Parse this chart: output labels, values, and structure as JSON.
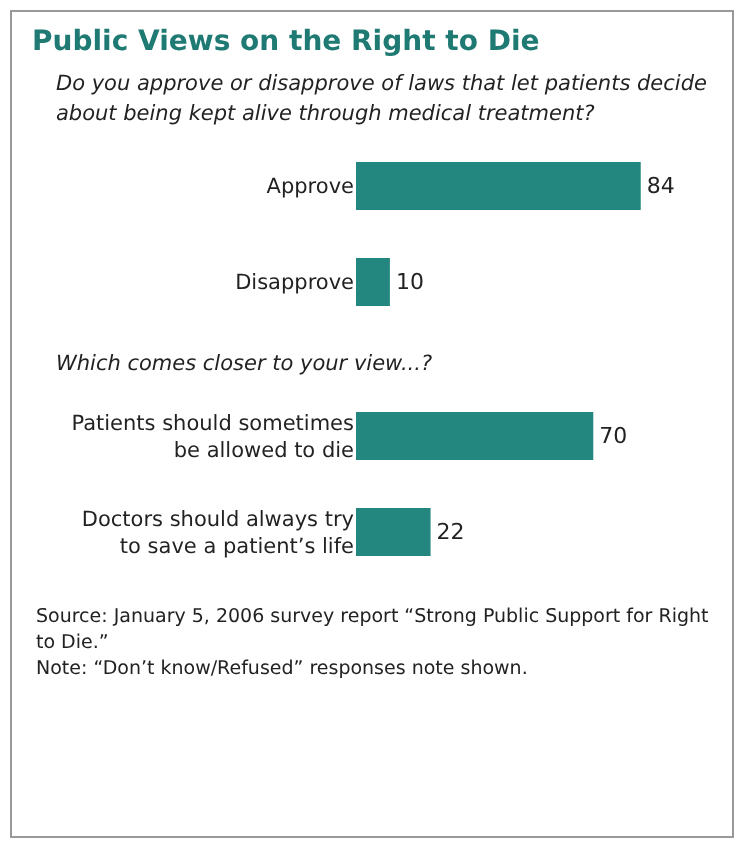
{
  "chart_data": [
    {
      "type": "bar",
      "title": "Public Views on the Right to Die",
      "subtitle": "Do you approve or disapprove of laws that let patients decide about being kept alive through medical treatment?",
      "orientation": "horizontal",
      "categories": [
        "Approve",
        "Disapprove"
      ],
      "values": [
        84,
        10
      ],
      "color": "#23877f",
      "data_labels": true
    },
    {
      "type": "bar",
      "subtitle": "Which comes closer to your view...?",
      "orientation": "horizontal",
      "categories": [
        "Patients should sometimes be allowed to die",
        "Doctors should always try to save a patient’s life"
      ],
      "values": [
        70,
        22
      ],
      "color": "#23877f",
      "data_labels": true,
      "annotations": [
        "Source: January 5, 2006 survey report “Strong Public Support for Right to Die.”",
        "Note: “Don’t know/Refused” responses note shown."
      ]
    }
  ]
}
